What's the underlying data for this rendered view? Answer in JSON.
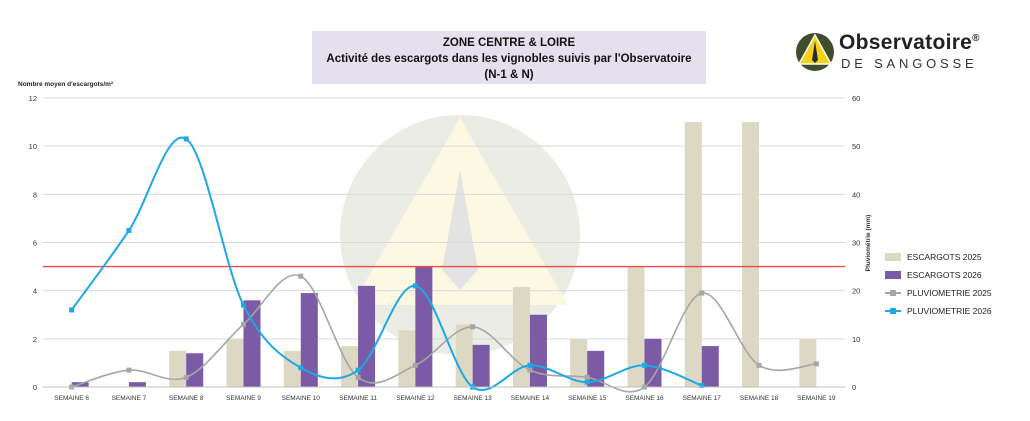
{
  "header": {
    "title_line1": "ZONE CENTRE & LOIRE",
    "title_line2": "Activité des escargots dans les vignobles suivis par l'Observatoire",
    "title_line3": "(N-1 & N)"
  },
  "logo": {
    "name": "Observatoire",
    "reg": "®",
    "subtitle": "DE SANGOSSE",
    "icon": "snail-triangle-logo-icon"
  },
  "chart_data": {
    "type": "bar",
    "categories": [
      "SEMAINE 6",
      "SEMAINE 7",
      "SEMAINE 8",
      "SEMAINE 9",
      "SEMAINE 10",
      "SEMAINE 11",
      "SEMAINE 12",
      "SEMAINE 13",
      "SEMAINE 14",
      "SEMAINE 15",
      "SEMAINE 16",
      "SEMAINE 17",
      "SEMAINE 18",
      "SEMAINE 19"
    ],
    "ylabel": "Nombre moyen d'escargots/m²",
    "y2label": "Pluviométrie (mm)",
    "ylim": [
      0,
      12
    ],
    "y2lim": [
      0,
      60
    ],
    "yticks": [
      "0",
      "2",
      "4",
      "6",
      "8",
      "10",
      "12"
    ],
    "y2ticks": [
      "0",
      "10",
      "20",
      "30",
      "40",
      "50",
      "60"
    ],
    "threshold": 5,
    "grid": true,
    "legend_position": "right",
    "series": [
      {
        "name": "ESCARGOTS 2025",
        "type": "bar",
        "axis": "left",
        "color": "#ddd8c4",
        "values": [
          0,
          0,
          1.5,
          2.0,
          1.5,
          1.7,
          2.35,
          2.6,
          4.15,
          2.0,
          5.0,
          11.0,
          11.0,
          2.0
        ]
      },
      {
        "name": "ESCARGOTS  2026",
        "type": "bar",
        "axis": "left",
        "color": "#7b5aa6",
        "values": [
          0.2,
          0.2,
          1.4,
          3.6,
          3.9,
          4.2,
          5.0,
          1.75,
          3.0,
          1.5,
          2.0,
          1.7,
          null,
          null
        ]
      },
      {
        "name": "PLUVIOMETRIE 2025",
        "type": "line",
        "axis": "right",
        "color": "#a6a6a6",
        "values": [
          0,
          3.5,
          2.0,
          13.0,
          23.0,
          2.0,
          4.5,
          12.5,
          3.5,
          2.0,
          0,
          19.5,
          4.5,
          4.8
        ]
      },
      {
        "name": "PLUVIOMETRIE 2026",
        "type": "line",
        "axis": "right",
        "color": "#1ca9e6",
        "values": [
          16.0,
          32.5,
          51.5,
          17.0,
          4.0,
          3.5,
          21.0,
          0,
          4.5,
          1.0,
          4.5,
          0.3,
          null,
          null
        ]
      }
    ]
  }
}
